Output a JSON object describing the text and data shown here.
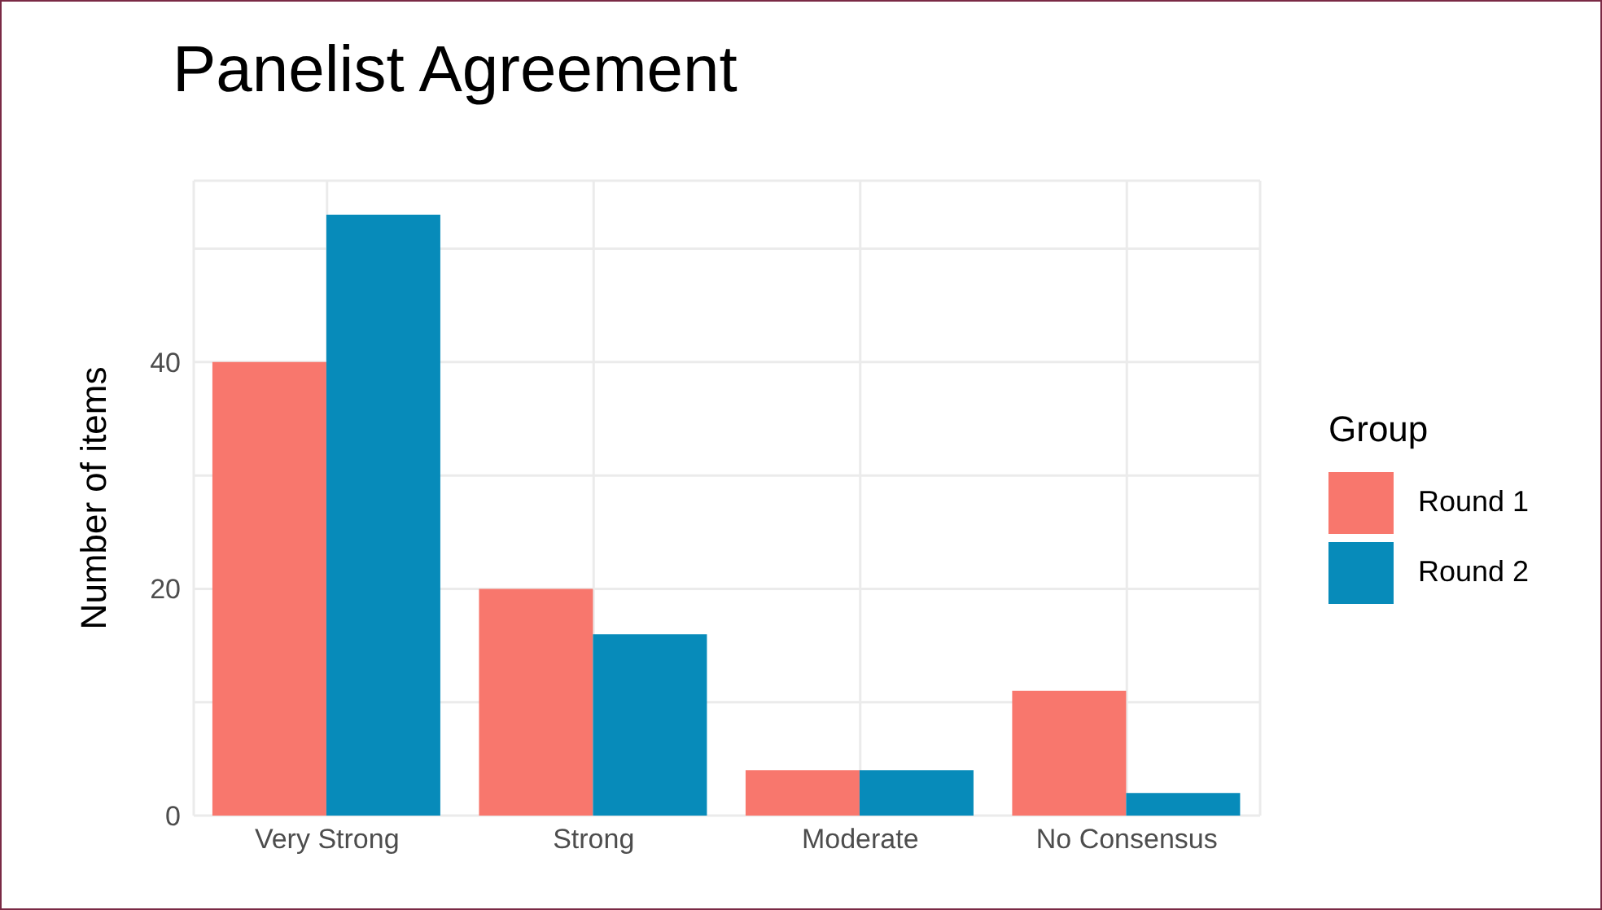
{
  "chart_data": {
    "type": "bar",
    "title": "Panelist Agreement",
    "ylabel": "Number of items",
    "legend_title": "Group",
    "categories": [
      "Very Strong",
      "Strong",
      "Moderate",
      "No Consensus"
    ],
    "series": [
      {
        "name": "Round 1",
        "color": "#f8776d",
        "values": [
          40,
          20,
          4,
          11
        ]
      },
      {
        "name": "Round 2",
        "color": "#078bba",
        "values": [
          53,
          16,
          4,
          2
        ]
      }
    ],
    "ylim": [
      0,
      56
    ],
    "yticks": [
      0,
      {
        "value": 10,
        "label": null
      },
      20,
      {
        "value": 30,
        "label": null
      },
      40,
      {
        "value": 50,
        "label": null
      }
    ],
    "grid": true,
    "legend": "right"
  }
}
